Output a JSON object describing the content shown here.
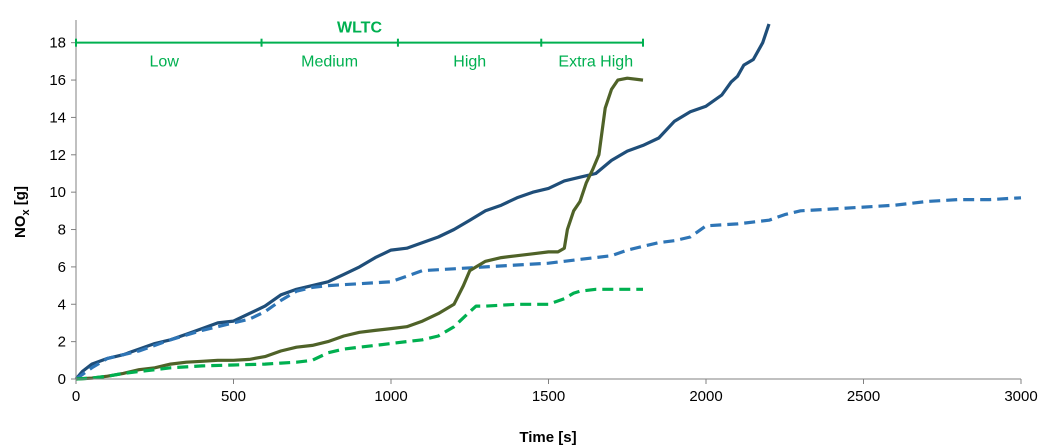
{
  "chart_data": {
    "type": "line",
    "title": "",
    "xlabel": "Time [s]",
    "ylabel": "NO",
    "ylabel_sub": "x",
    "ylabel_unit": " [g]",
    "xlim": [
      0,
      3000
    ],
    "ylim": [
      0,
      19
    ],
    "xticks": [
      0,
      500,
      1000,
      1500,
      2000,
      2500,
      3000
    ],
    "yticks": [
      0,
      2,
      4,
      6,
      8,
      10,
      12,
      14,
      16,
      18
    ],
    "grid": false,
    "legend": "none",
    "cycle": {
      "title": "WLTC",
      "color": "#00b050",
      "boundaries": [
        0,
        589,
        1022,
        1477,
        1800
      ],
      "phases": [
        {
          "label": "Low",
          "center": 280
        },
        {
          "label": "Medium",
          "center": 805
        },
        {
          "label": "High",
          "center": 1250
        },
        {
          "label": "Extra High",
          "center": 1650
        }
      ]
    },
    "series": [
      {
        "color": "#1f4e79",
        "style": "solid",
        "x": [
          0,
          20,
          50,
          100,
          150,
          200,
          250,
          300,
          350,
          400,
          450,
          500,
          550,
          600,
          650,
          700,
          750,
          800,
          850,
          900,
          950,
          1000,
          1050,
          1100,
          1150,
          1200,
          1250,
          1300,
          1350,
          1400,
          1450,
          1500,
          1550,
          1600,
          1650,
          1700,
          1750,
          1800,
          1850,
          1900,
          1950,
          2000,
          2050,
          2080,
          2100,
          2120,
          2150,
          2180,
          2200
        ],
        "y": [
          0,
          0.4,
          0.8,
          1.1,
          1.3,
          1.6,
          1.9,
          2.1,
          2.4,
          2.7,
          3.0,
          3.1,
          3.5,
          3.9,
          4.5,
          4.8,
          5.0,
          5.2,
          5.6,
          6.0,
          6.5,
          6.9,
          7.0,
          7.3,
          7.6,
          8.0,
          8.5,
          9.0,
          9.3,
          9.7,
          10.0,
          10.2,
          10.6,
          10.8,
          11.0,
          11.7,
          12.2,
          12.5,
          12.9,
          13.8,
          14.3,
          14.6,
          15.2,
          15.9,
          16.2,
          16.8,
          17.1,
          18.0,
          19.0
        ]
      },
      {
        "color": "#2e75b6",
        "style": "dashed",
        "x": [
          0,
          50,
          100,
          200,
          300,
          400,
          500,
          550,
          600,
          650,
          700,
          750,
          800,
          900,
          1000,
          1050,
          1100,
          1200,
          1300,
          1400,
          1500,
          1550,
          1600,
          1700,
          1750,
          1800,
          1850,
          1900,
          1950,
          2000,
          2100,
          2200,
          2250,
          2300,
          2400,
          2500,
          2600,
          2700,
          2800,
          2900,
          3000
        ],
        "y": [
          0,
          0.6,
          1.1,
          1.5,
          2.1,
          2.6,
          3.0,
          3.2,
          3.6,
          4.2,
          4.7,
          4.9,
          5.0,
          5.1,
          5.2,
          5.5,
          5.8,
          5.9,
          6.0,
          6.1,
          6.2,
          6.3,
          6.4,
          6.6,
          6.9,
          7.1,
          7.3,
          7.4,
          7.6,
          8.2,
          8.3,
          8.5,
          8.8,
          9.0,
          9.1,
          9.2,
          9.3,
          9.5,
          9.6,
          9.6,
          9.7
        ]
      },
      {
        "color": "#4f6228",
        "style": "solid",
        "x": [
          0,
          50,
          100,
          150,
          200,
          250,
          300,
          350,
          400,
          450,
          500,
          550,
          600,
          650,
          700,
          750,
          800,
          850,
          900,
          950,
          1000,
          1050,
          1100,
          1150,
          1200,
          1230,
          1250,
          1280,
          1300,
          1350,
          1400,
          1450,
          1500,
          1530,
          1550,
          1560,
          1580,
          1600,
          1620,
          1640,
          1660,
          1680,
          1700,
          1720,
          1750,
          1800
        ],
        "y": [
          0,
          0.05,
          0.15,
          0.3,
          0.5,
          0.6,
          0.8,
          0.9,
          0.95,
          1.0,
          1.0,
          1.05,
          1.2,
          1.5,
          1.7,
          1.8,
          2.0,
          2.3,
          2.5,
          2.6,
          2.7,
          2.8,
          3.1,
          3.5,
          4.0,
          5.0,
          5.8,
          6.1,
          6.3,
          6.5,
          6.6,
          6.7,
          6.8,
          6.8,
          7.0,
          8.0,
          9.0,
          9.5,
          10.5,
          11.2,
          12.0,
          14.5,
          15.5,
          16.0,
          16.1,
          16.0
        ]
      },
      {
        "color": "#00b050",
        "style": "dashed",
        "x": [
          0,
          50,
          100,
          150,
          200,
          250,
          300,
          400,
          500,
          600,
          650,
          700,
          750,
          800,
          850,
          900,
          950,
          1000,
          1050,
          1100,
          1150,
          1200,
          1250,
          1270,
          1300,
          1400,
          1500,
          1550,
          1580,
          1600,
          1650,
          1700,
          1750,
          1800
        ],
        "y": [
          0,
          0.05,
          0.15,
          0.3,
          0.4,
          0.5,
          0.6,
          0.7,
          0.75,
          0.8,
          0.85,
          0.9,
          1.0,
          1.4,
          1.6,
          1.7,
          1.8,
          1.9,
          2.0,
          2.1,
          2.3,
          2.8,
          3.6,
          3.9,
          3.9,
          4.0,
          4.0,
          4.3,
          4.6,
          4.7,
          4.8,
          4.8,
          4.8,
          4.8
        ]
      }
    ]
  }
}
